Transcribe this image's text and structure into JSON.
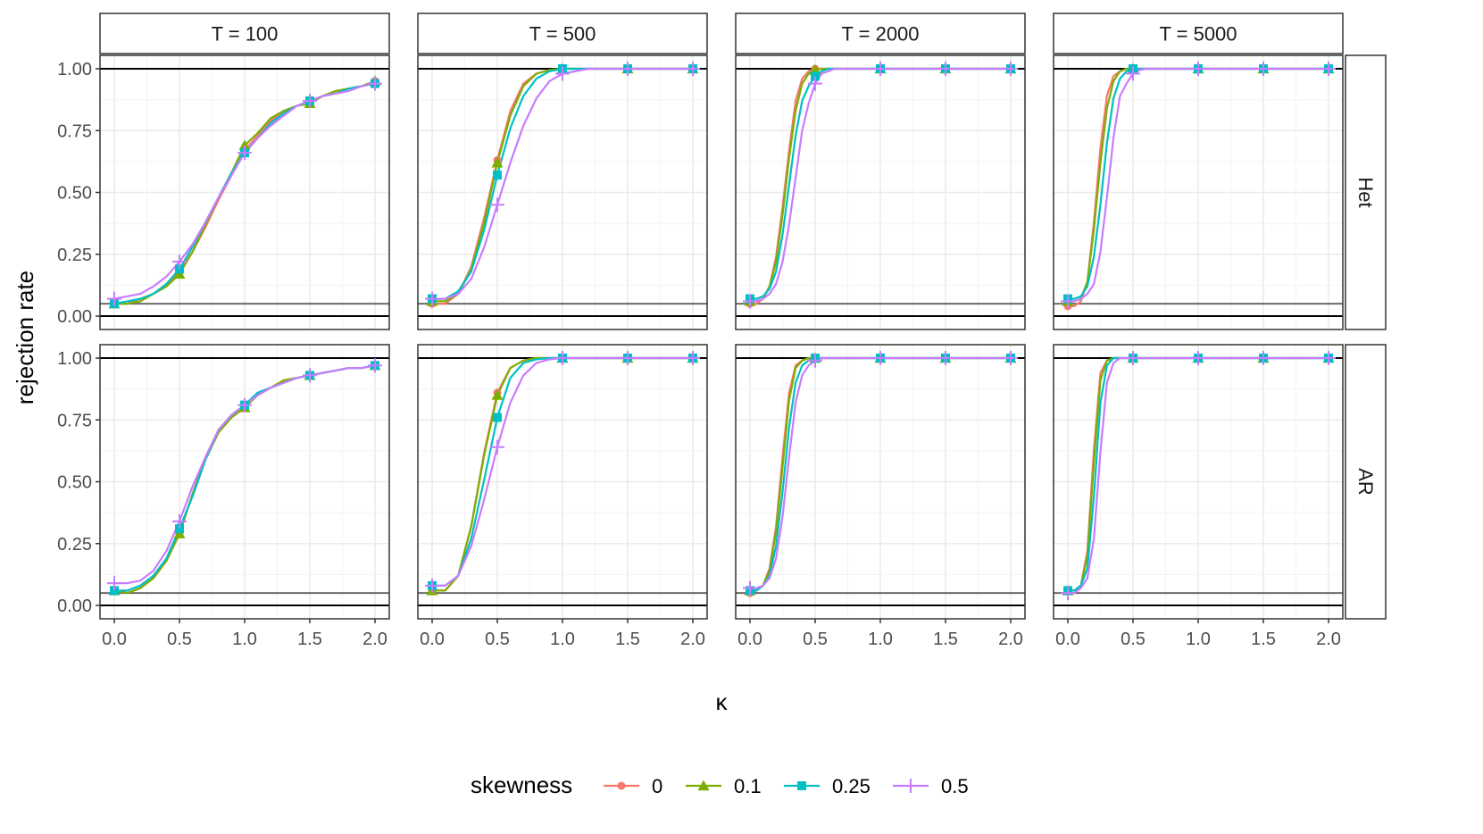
{
  "chart_data": {
    "type": "line",
    "title": "",
    "xlabel": "κ",
    "ylabel": "rejection rate",
    "xlim": [
      0,
      2
    ],
    "ylim": [
      0,
      1
    ],
    "x_ticks": [
      "0.0",
      "0.5",
      "1.0",
      "1.5",
      "2.0"
    ],
    "x_tick_values": [
      0,
      0.5,
      1,
      1.5,
      2
    ],
    "y_ticks": [
      "0.00",
      "0.25",
      "0.50",
      "0.75",
      "1.00"
    ],
    "y_tick_values": [
      0,
      0.25,
      0.5,
      0.75,
      1
    ],
    "reference_lines": {
      "nominal_level": 0.05,
      "bounds": [
        0,
        1
      ]
    },
    "columns": [
      "T = 100",
      "T = 500",
      "T = 2000",
      "T = 5000"
    ],
    "rows": [
      "Het",
      "AR"
    ],
    "legend": {
      "title": "skewness",
      "position": "bottom",
      "entries": [
        {
          "label": "0",
          "color": "#F8766D",
          "shape": "circle"
        },
        {
          "label": "0.1",
          "color": "#7CAE00",
          "shape": "triangle"
        },
        {
          "label": "0.25",
          "color": "#00BFC4",
          "shape": "square"
        },
        {
          "label": "0.5",
          "color": "#C77CFF",
          "shape": "plus"
        }
      ]
    },
    "marker_x": [
      0,
      0.5,
      1,
      1.5,
      2
    ],
    "panels": [
      {
        "row": "Het",
        "column": "T = 100",
        "x": [
          0,
          0.1,
          0.2,
          0.3,
          0.4,
          0.5,
          0.6,
          0.7,
          0.8,
          0.9,
          1.0,
          1.1,
          1.2,
          1.3,
          1.4,
          1.5,
          1.6,
          1.7,
          1.8,
          1.9,
          2.0
        ],
        "series": [
          {
            "name": "0",
            "values": [
              0.05,
              0.05,
              0.07,
              0.09,
              0.12,
              0.18,
              0.26,
              0.36,
              0.47,
              0.57,
              0.67,
              0.73,
              0.79,
              0.83,
              0.85,
              0.87,
              0.89,
              0.91,
              0.92,
              0.93,
              0.95
            ]
          },
          {
            "name": "0.1",
            "values": [
              0.05,
              0.05,
              0.06,
              0.09,
              0.12,
              0.17,
              0.26,
              0.37,
              0.48,
              0.58,
              0.69,
              0.74,
              0.8,
              0.83,
              0.85,
              0.86,
              0.89,
              0.91,
              0.92,
              0.93,
              0.95
            ]
          },
          {
            "name": "0.25",
            "values": [
              0.05,
              0.06,
              0.07,
              0.09,
              0.13,
              0.19,
              0.28,
              0.38,
              0.48,
              0.58,
              0.66,
              0.72,
              0.78,
              0.82,
              0.85,
              0.87,
              0.89,
              0.9,
              0.92,
              0.93,
              0.94
            ]
          },
          {
            "name": "0.5",
            "values": [
              0.07,
              0.08,
              0.09,
              0.12,
              0.16,
              0.22,
              0.29,
              0.38,
              0.48,
              0.57,
              0.66,
              0.72,
              0.77,
              0.81,
              0.85,
              0.87,
              0.89,
              0.9,
              0.91,
              0.93,
              0.94
            ]
          }
        ]
      },
      {
        "row": "Het",
        "column": "T = 500",
        "x": [
          0,
          0.1,
          0.2,
          0.3,
          0.4,
          0.5,
          0.6,
          0.7,
          0.8,
          0.9,
          1.0,
          1.1,
          1.2,
          1.3,
          1.4,
          1.5,
          1.6,
          1.7,
          1.8,
          1.9,
          2.0
        ],
        "series": [
          {
            "name": "0",
            "values": [
              0.05,
              0.05,
              0.09,
              0.2,
              0.4,
              0.63,
              0.83,
              0.94,
              0.98,
              0.995,
              1,
              1,
              1,
              1,
              1,
              1,
              1,
              1,
              1,
              1,
              1
            ]
          },
          {
            "name": "0.1",
            "values": [
              0.06,
              0.06,
              0.09,
              0.19,
              0.38,
              0.62,
              0.81,
              0.93,
              0.98,
              0.995,
              1,
              1,
              1,
              1,
              1,
              1,
              1,
              1,
              1,
              1,
              1
            ]
          },
          {
            "name": "0.25",
            "values": [
              0.07,
              0.07,
              0.1,
              0.18,
              0.35,
              0.57,
              0.76,
              0.89,
              0.96,
              0.99,
              1,
              1,
              1,
              1,
              1,
              1,
              1,
              1,
              1,
              1,
              1
            ]
          },
          {
            "name": "0.5",
            "values": [
              0.07,
              0.07,
              0.09,
              0.15,
              0.28,
              0.45,
              0.62,
              0.77,
              0.88,
              0.95,
              0.98,
              0.99,
              1,
              1,
              1,
              1,
              1,
              1,
              1,
              1,
              1
            ]
          }
        ]
      },
      {
        "row": "Het",
        "column": "T = 2000",
        "x": [
          0,
          0.05,
          0.1,
          0.15,
          0.2,
          0.25,
          0.3,
          0.35,
          0.4,
          0.45,
          0.5,
          0.55,
          0.6,
          0.65,
          0.7,
          0.75,
          0.8,
          1.0,
          1.5,
          2.0
        ],
        "series": [
          {
            "name": "0",
            "values": [
              0.05,
              0.05,
              0.07,
              0.12,
              0.24,
              0.44,
              0.67,
              0.87,
              0.96,
              0.99,
              1,
              1,
              1,
              1,
              1,
              1,
              1,
              1,
              1,
              1
            ]
          },
          {
            "name": "0.1",
            "values": [
              0.06,
              0.06,
              0.07,
              0.12,
              0.22,
              0.41,
              0.64,
              0.83,
              0.94,
              0.98,
              0.995,
              1,
              1,
              1,
              1,
              1,
              1,
              1,
              1,
              1
            ]
          },
          {
            "name": "0.25",
            "values": [
              0.07,
              0.07,
              0.08,
              0.11,
              0.18,
              0.33,
              0.53,
              0.73,
              0.87,
              0.93,
              0.97,
              0.99,
              1,
              1,
              1,
              1,
              1,
              1,
              1,
              1
            ]
          },
          {
            "name": "0.5",
            "values": [
              0.06,
              0.06,
              0.07,
              0.09,
              0.13,
              0.22,
              0.37,
              0.56,
              0.75,
              0.86,
              0.94,
              0.98,
              0.99,
              1,
              1,
              1,
              1,
              1,
              1,
              1
            ]
          }
        ]
      },
      {
        "row": "Het",
        "column": "T = 5000",
        "x": [
          0,
          0.05,
          0.1,
          0.15,
          0.2,
          0.25,
          0.3,
          0.35,
          0.4,
          0.45,
          0.5,
          0.55,
          0.6,
          0.65,
          0.7,
          1.0,
          1.5,
          2.0
        ],
        "series": [
          {
            "name": "0",
            "values": [
              0.04,
              0.04,
              0.06,
              0.14,
              0.38,
              0.68,
              0.89,
              0.97,
              0.99,
              1,
              1,
              1,
              1,
              1,
              1,
              1,
              1,
              1
            ]
          },
          {
            "name": "0.1",
            "values": [
              0.06,
              0.06,
              0.07,
              0.14,
              0.35,
              0.62,
              0.84,
              0.95,
              0.99,
              1,
              1,
              1,
              1,
              1,
              1,
              1,
              1,
              1
            ]
          },
          {
            "name": "0.25",
            "values": [
              0.07,
              0.07,
              0.08,
              0.12,
              0.24,
              0.45,
              0.7,
              0.88,
              0.96,
              0.99,
              1,
              1,
              1,
              1,
              1,
              1,
              1,
              1
            ]
          },
          {
            "name": "0.5",
            "values": [
              0.06,
              0.06,
              0.07,
              0.09,
              0.13,
              0.26,
              0.48,
              0.72,
              0.89,
              0.94,
              0.98,
              0.995,
              1,
              1,
              1,
              1,
              1,
              1
            ]
          }
        ]
      },
      {
        "row": "AR",
        "column": "T = 100",
        "x": [
          0,
          0.1,
          0.2,
          0.3,
          0.4,
          0.5,
          0.6,
          0.7,
          0.8,
          0.9,
          1.0,
          1.1,
          1.2,
          1.3,
          1.4,
          1.5,
          1.6,
          1.7,
          1.8,
          1.9,
          2.0
        ],
        "series": [
          {
            "name": "0",
            "values": [
              0.06,
              0.05,
              0.07,
              0.11,
              0.18,
              0.29,
              0.45,
              0.6,
              0.71,
              0.77,
              0.81,
              0.85,
              0.88,
              0.91,
              0.92,
              0.93,
              0.94,
              0.95,
              0.96,
              0.96,
              0.97
            ]
          },
          {
            "name": "0.1",
            "values": [
              0.06,
              0.05,
              0.07,
              0.11,
              0.18,
              0.29,
              0.45,
              0.59,
              0.7,
              0.76,
              0.8,
              0.85,
              0.88,
              0.91,
              0.92,
              0.93,
              0.94,
              0.95,
              0.96,
              0.96,
              0.97
            ]
          },
          {
            "name": "0.25",
            "values": [
              0.06,
              0.06,
              0.08,
              0.12,
              0.19,
              0.31,
              0.44,
              0.59,
              0.71,
              0.77,
              0.81,
              0.86,
              0.88,
              0.9,
              0.92,
              0.93,
              0.94,
              0.95,
              0.96,
              0.96,
              0.97
            ]
          },
          {
            "name": "0.5",
            "values": [
              0.09,
              0.09,
              0.1,
              0.14,
              0.22,
              0.34,
              0.48,
              0.6,
              0.71,
              0.77,
              0.81,
              0.85,
              0.88,
              0.9,
              0.92,
              0.93,
              0.94,
              0.95,
              0.96,
              0.96,
              0.97
            ]
          }
        ]
      },
      {
        "row": "AR",
        "column": "T = 500",
        "x": [
          0,
          0.1,
          0.2,
          0.3,
          0.4,
          0.5,
          0.6,
          0.7,
          0.8,
          0.9,
          1.0,
          1.5,
          2.0
        ],
        "series": [
          {
            "name": "0",
            "values": [
              0.06,
              0.06,
              0.12,
              0.32,
              0.62,
              0.86,
              0.96,
              0.99,
              1,
              1,
              1,
              1,
              1
            ]
          },
          {
            "name": "0.1",
            "values": [
              0.06,
              0.06,
              0.12,
              0.32,
              0.61,
              0.85,
              0.96,
              0.99,
              1,
              1,
              1,
              1,
              1
            ]
          },
          {
            "name": "0.25",
            "values": [
              0.08,
              0.08,
              0.12,
              0.27,
              0.51,
              0.76,
              0.92,
              0.98,
              0.995,
              1,
              1,
              1,
              1
            ]
          },
          {
            "name": "0.5",
            "values": [
              0.08,
              0.08,
              0.12,
              0.24,
              0.43,
              0.64,
              0.82,
              0.93,
              0.98,
              0.995,
              1,
              1,
              1
            ]
          }
        ]
      },
      {
        "row": "AR",
        "column": "T = 2000",
        "x": [
          0,
          0.05,
          0.1,
          0.15,
          0.2,
          0.25,
          0.3,
          0.35,
          0.4,
          0.45,
          0.5,
          0.55,
          0.6,
          0.65,
          0.7,
          1.0,
          1.5,
          2.0
        ],
        "series": [
          {
            "name": "0",
            "values": [
              0.05,
              0.06,
              0.08,
              0.15,
              0.32,
              0.6,
              0.86,
              0.97,
              0.99,
              1,
              1,
              1,
              1,
              1,
              1,
              1,
              1,
              1
            ]
          },
          {
            "name": "0.1",
            "values": [
              0.06,
              0.06,
              0.08,
              0.14,
              0.3,
              0.56,
              0.83,
              0.96,
              0.99,
              1,
              1,
              1,
              1,
              1,
              1,
              1,
              1,
              1
            ]
          },
          {
            "name": "0.25",
            "values": [
              0.06,
              0.06,
              0.08,
              0.12,
              0.24,
              0.46,
              0.72,
              0.9,
              0.97,
              0.99,
              1,
              1,
              1,
              1,
              1,
              1,
              1,
              1
            ]
          },
          {
            "name": "0.5",
            "values": [
              0.07,
              0.07,
              0.08,
              0.11,
              0.19,
              0.36,
              0.6,
              0.82,
              0.93,
              0.97,
              0.99,
              1,
              1,
              1,
              1,
              1,
              1,
              1
            ]
          }
        ]
      },
      {
        "row": "AR",
        "column": "T = 5000",
        "x": [
          0,
          0.05,
          0.1,
          0.15,
          0.2,
          0.25,
          0.3,
          0.35,
          0.4,
          0.45,
          0.5,
          0.55,
          0.6,
          1.0,
          1.5,
          2.0
        ],
        "series": [
          {
            "name": "0",
            "values": [
              0.06,
              0.06,
              0.08,
              0.22,
              0.63,
              0.94,
              0.99,
              1,
              1,
              1,
              1,
              1,
              1,
              1,
              1,
              1
            ]
          },
          {
            "name": "0.1",
            "values": [
              0.06,
              0.06,
              0.08,
              0.2,
              0.58,
              0.91,
              0.99,
              1,
              1,
              1,
              1,
              1,
              1,
              1,
              1,
              1
            ]
          },
          {
            "name": "0.25",
            "values": [
              0.06,
              0.06,
              0.08,
              0.15,
              0.44,
              0.82,
              0.97,
              1,
              1,
              1,
              1,
              1,
              1,
              1,
              1,
              1
            ]
          },
          {
            "name": "0.5",
            "values": [
              0.05,
              0.05,
              0.07,
              0.11,
              0.27,
              0.62,
              0.9,
              0.98,
              1,
              1,
              1,
              1,
              1,
              1,
              1,
              1
            ]
          }
        ]
      }
    ]
  }
}
